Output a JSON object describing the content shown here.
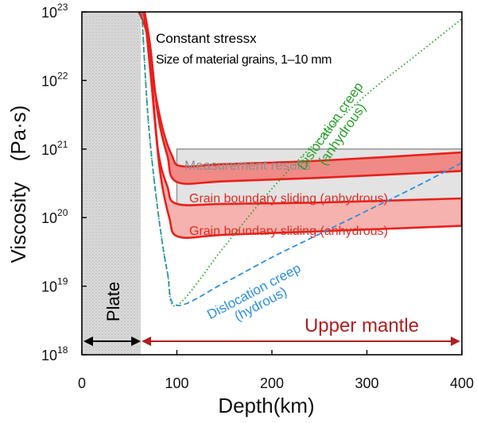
{
  "chart_data": {
    "type": "line",
    "xlabel": "Depth(km)",
    "ylabel": "Viscosity　(Pa·s)",
    "xlim": [
      0,
      400
    ],
    "ylim_log10": [
      18,
      23
    ],
    "y_scale": "log",
    "x_ticks": [
      0,
      100,
      200,
      300,
      400
    ],
    "y_ticks": [
      {
        "base": "10",
        "exp": "18",
        "log10": 18
      },
      {
        "base": "10",
        "exp": "19",
        "log10": 19
      },
      {
        "base": "10",
        "exp": "20",
        "log10": 20
      },
      {
        "base": "10",
        "exp": "21",
        "log10": 21
      },
      {
        "base": "10",
        "exp": "22",
        "log10": 22
      },
      {
        "base": "10",
        "exp": "23",
        "log10": 23
      }
    ],
    "annotations": {
      "line1": "Constant stressx",
      "line2": "Size of material grains, 1–10 mm"
    },
    "regions": {
      "plate": {
        "label": "Plate",
        "x_range": [
          0,
          62
        ],
        "color": "#cfcfcf"
      },
      "upper_mantle": {
        "label": "Upper mantle",
        "x_range": [
          62,
          400
        ],
        "color": "#b01e1e"
      }
    },
    "measurement": {
      "label": "Measurement results",
      "x_range": [
        100,
        400
      ],
      "log10_range": [
        20.0,
        21.0
      ],
      "fill": "#e3e3e3",
      "stroke": "#9a9a9a"
    },
    "series": [
      {
        "name": "Dislocation creep (anhydrous)",
        "label_line1": "Dislocation creep",
        "label_line2": "(anhydrous)",
        "color": "#2aa02a",
        "style": "dotted",
        "points": [
          [
            63,
            23.0
          ],
          [
            70,
            21.4
          ],
          [
            80,
            20.1
          ],
          [
            90,
            19.2
          ],
          [
            100,
            18.72
          ],
          [
            150,
            19.58
          ],
          [
            200,
            20.42
          ],
          [
            250,
            21.15
          ],
          [
            300,
            21.8
          ],
          [
            350,
            22.35
          ],
          [
            400,
            22.9
          ]
        ]
      },
      {
        "name": "Dislocation creep (hydrous)",
        "label_line1": "Dislocation creep",
        "label_line2": "(hydrous)",
        "color": "#2b8fe0",
        "style": "dashed",
        "points": [
          [
            63,
            23.0
          ],
          [
            70,
            21.4
          ],
          [
            80,
            20.1
          ],
          [
            90,
            19.2
          ],
          [
            100,
            18.72
          ],
          [
            150,
            19.05
          ],
          [
            200,
            19.42
          ],
          [
            250,
            19.76
          ],
          [
            300,
            20.1
          ],
          [
            350,
            20.44
          ],
          [
            400,
            20.8
          ]
        ]
      },
      {
        "name": "Grain boundary sliding (anhydrous)",
        "color": "#e8201c",
        "fill": "#f08a86",
        "band_upper": [
          [
            60,
            23.0
          ],
          [
            68,
            22.7
          ],
          [
            75,
            22.0
          ],
          [
            85,
            21.3
          ],
          [
            95,
            20.9
          ],
          [
            105,
            20.75
          ],
          [
            150,
            20.78
          ],
          [
            250,
            20.83
          ],
          [
            400,
            20.95
          ]
        ],
        "band_lower": [
          [
            66,
            23.0
          ],
          [
            72,
            22.5
          ],
          [
            80,
            21.5
          ],
          [
            90,
            20.9
          ],
          [
            100,
            20.52
          ],
          [
            150,
            20.53
          ],
          [
            250,
            20.58
          ],
          [
            400,
            20.68
          ]
        ]
      },
      {
        "name": "Grain boundary sliding (anhydrous)",
        "color": "#e8201c",
        "fill": "#f6b2ae",
        "band_upper": [
          [
            65,
            23.0
          ],
          [
            72,
            22.3
          ],
          [
            80,
            21.0
          ],
          [
            90,
            20.45
          ],
          [
            100,
            20.2
          ],
          [
            150,
            20.2
          ],
          [
            250,
            20.22
          ],
          [
            400,
            20.28
          ]
        ],
        "band_lower": [
          [
            66,
            23.0
          ],
          [
            73,
            22.0
          ],
          [
            82,
            20.7
          ],
          [
            92,
            20.0
          ],
          [
            102,
            19.72
          ],
          [
            150,
            19.75
          ],
          [
            250,
            19.8
          ],
          [
            400,
            19.88
          ]
        ]
      }
    ]
  }
}
